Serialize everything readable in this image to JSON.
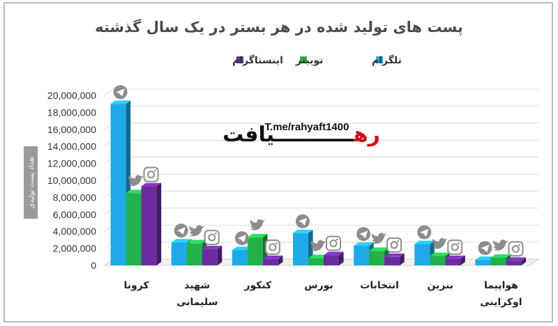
{
  "colors": {
    "telegram": "#1fa9e8",
    "twitter": "#21b24b",
    "instagram": "#6a2c9e",
    "grid": "#dcdcdc",
    "border": "#8a8a8a",
    "icon": "#8c8c8c",
    "watermark_red": "#d0101a",
    "watermark_black": "#111111",
    "ylabel_bg": "#9a9a9a"
  },
  "watermark": {
    "brand_red": "ره",
    "brand_black": "یافت",
    "url": "T.me/rahyaft1400"
  },
  "chart_data": {
    "type": "bar",
    "title": "پست های تولید شده در هر بستر در یک سال گذشته",
    "ylabel": "تعداد پست تولیدی",
    "xlabel": "",
    "ylim": [
      0,
      20000000
    ],
    "y_ticks": [
      "0",
      "2,000,000",
      "4,000,000",
      "6,000,000",
      "8,000,000",
      "10,000,000",
      "12,000,000",
      "14,000,000",
      "16,000,000",
      "18,000,000",
      "20,000,000"
    ],
    "grid": true,
    "legend_position": "top",
    "categories": [
      [
        "کرونا"
      ],
      [
        "شهید",
        "سلیمانی"
      ],
      [
        "کنکور"
      ],
      [
        "بورس"
      ],
      [
        "انتخابات"
      ],
      [
        "بنزین"
      ],
      [
        "هواپیما",
        "اوکراینی"
      ]
    ],
    "series": [
      {
        "name": "تلگرام",
        "icon": "telegram-icon",
        "color": "#1fa9e8",
        "values": [
          19000000,
          2700000,
          1800000,
          3800000,
          2300000,
          2500000,
          650000
        ]
      },
      {
        "name": "توییتر",
        "icon": "twitter-icon",
        "color": "#21b24b",
        "values": [
          8500000,
          2600000,
          3300000,
          850000,
          1700000,
          1100000,
          900000
        ]
      },
      {
        "name": "اینستاگرام",
        "icon": "instagram-icon",
        "color": "#6a2c9e",
        "values": [
          9300000,
          1900000,
          750000,
          1200000,
          1000000,
          750000,
          550000
        ]
      }
    ]
  }
}
